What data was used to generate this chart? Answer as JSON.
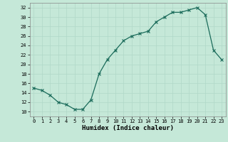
{
  "x": [
    0,
    1,
    2,
    3,
    4,
    5,
    6,
    7,
    8,
    9,
    10,
    11,
    12,
    13,
    14,
    15,
    16,
    17,
    18,
    19,
    20,
    21,
    22,
    23
  ],
  "y": [
    15,
    14.5,
    13.5,
    12,
    11.5,
    10.5,
    10.5,
    12.5,
    18,
    21,
    23,
    25,
    26,
    26.5,
    27,
    29,
    30,
    31,
    31,
    31.5,
    32,
    30.5,
    23,
    21
  ],
  "line_color": "#1a6b5a",
  "marker": "x",
  "marker_size": 2.5,
  "marker_lw": 0.8,
  "bg_color": "#c5e8d8",
  "grid_color": "#b0d8c8",
  "xlabel": "Humidex (Indice chaleur)",
  "xlim": [
    -0.5,
    23.5
  ],
  "ylim": [
    9,
    33
  ],
  "yticks": [
    10,
    12,
    14,
    16,
    18,
    20,
    22,
    24,
    26,
    28,
    30,
    32
  ],
  "xticks": [
    0,
    1,
    2,
    3,
    4,
    5,
    6,
    7,
    8,
    9,
    10,
    11,
    12,
    13,
    14,
    15,
    16,
    17,
    18,
    19,
    20,
    21,
    22,
    23
  ],
  "tick_fontsize": 5,
  "xlabel_fontsize": 6.5,
  "line_width": 0.9,
  "spine_color": "#888888"
}
